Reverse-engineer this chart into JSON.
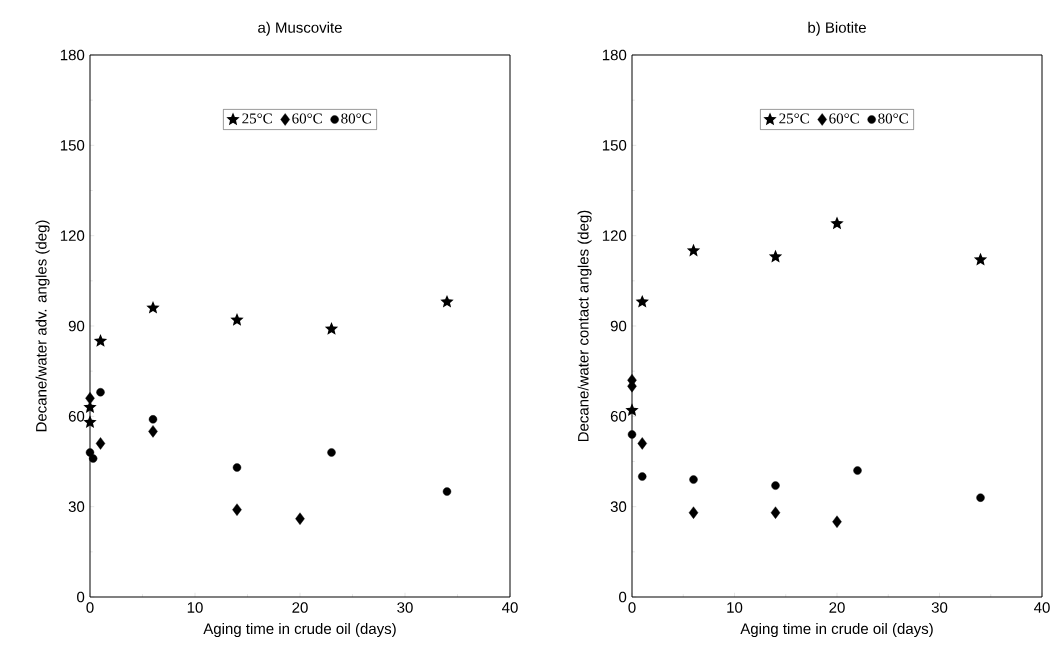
{
  "chart_data": [
    {
      "type": "scatter",
      "title": "a) Muscovite",
      "xlabel": "Aging time in crude oil (days)",
      "ylabel": "Decane/water adv. angles (deg)",
      "xlim": [
        0,
        40
      ],
      "ylim": [
        0,
        180
      ],
      "xticks": [
        0,
        10,
        20,
        30,
        40
      ],
      "yticks": [
        0,
        30,
        60,
        90,
        120,
        150,
        180
      ],
      "legend": "top",
      "series": [
        {
          "name": "25°C",
          "color": "#000000",
          "marker": "star",
          "x": [
            0,
            0,
            1,
            6,
            14,
            23,
            34
          ],
          "values": [
            58,
            63,
            85,
            96,
            92,
            89,
            98
          ]
        },
        {
          "name": "60°C",
          "color": "#000000",
          "marker": "diamond",
          "x": [
            0,
            1,
            6,
            14,
            20
          ],
          "values": [
            66,
            51,
            55,
            29,
            26
          ]
        },
        {
          "name": "80°C",
          "color": "#000000",
          "marker": "circle",
          "x": [
            0,
            0.3,
            1,
            6,
            14,
            23,
            34
          ],
          "values": [
            48,
            46,
            68,
            59,
            43,
            48,
            35
          ]
        }
      ]
    },
    {
      "type": "scatter",
      "title": "b) Biotite",
      "xlabel": "Aging time in crude oil (days)",
      "ylabel": "Decane/water contact angles (deg)",
      "xlim": [
        0,
        40
      ],
      "ylim": [
        0,
        180
      ],
      "xticks": [
        0,
        10,
        20,
        30,
        40
      ],
      "yticks": [
        0,
        30,
        60,
        90,
        120,
        150,
        180
      ],
      "legend": "top",
      "series": [
        {
          "name": "25°C",
          "color": "#000000",
          "marker": "star",
          "x": [
            0,
            1,
            6,
            14,
            20,
            34
          ],
          "values": [
            62,
            98,
            115,
            113,
            124,
            112
          ]
        },
        {
          "name": "60°C",
          "color": "#000000",
          "marker": "diamond",
          "x": [
            0,
            0,
            1,
            6,
            14,
            20
          ],
          "values": [
            72,
            70,
            51,
            28,
            28,
            25
          ]
        },
        {
          "name": "80°C",
          "color": "#000000",
          "marker": "circle",
          "x": [
            0,
            1,
            6,
            14,
            22,
            34
          ],
          "values": [
            54,
            40,
            39,
            37,
            42,
            33
          ]
        }
      ]
    }
  ]
}
